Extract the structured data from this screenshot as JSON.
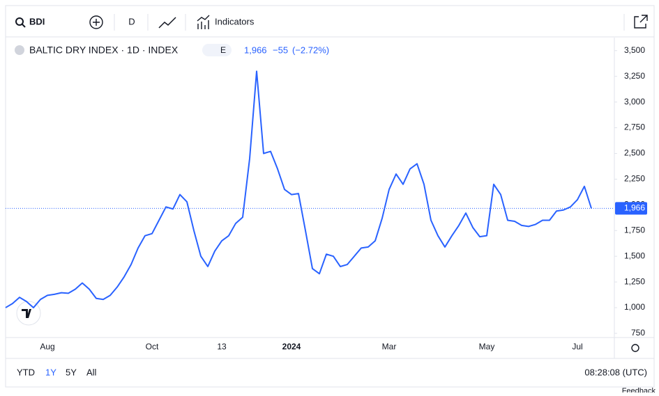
{
  "ui": {
    "symbol": "BDI",
    "interval": "D",
    "indicators": "Indicators",
    "legend_title": "BALTIC DRY INDEX · 1D · INDEX",
    "legend_badge": "E",
    "price": "1,966",
    "change": "−55",
    "change_pct": "(−2.72%)",
    "ranges": [
      "YTD",
      "1Y",
      "5Y",
      "All"
    ],
    "clock": "08:28:08 (UTC)",
    "feedback": "Feedback"
  },
  "chart_data": {
    "type": "line",
    "color": "#2962ff",
    "grid": false,
    "categories": [
      null,
      null,
      null,
      null,
      null,
      null,
      "Aug",
      null,
      null,
      null,
      null,
      null,
      null,
      null,
      null,
      null,
      null,
      null,
      null,
      null,
      null,
      "Oct",
      null,
      null,
      null,
      null,
      null,
      null,
      null,
      null,
      null,
      "13",
      null,
      null,
      null,
      null,
      null,
      null,
      null,
      null,
      null,
      "2024",
      null,
      null,
      null,
      null,
      null,
      null,
      null,
      null,
      null,
      null,
      null,
      null,
      null,
      "Mar",
      null,
      null,
      null,
      null,
      null,
      null,
      null,
      null,
      null,
      null,
      null,
      null,
      null,
      "May",
      null,
      null,
      null,
      null,
      null,
      null,
      null,
      null,
      null,
      null,
      null,
      null,
      "Jul",
      null,
      null
    ],
    "values": [
      1000,
      1040,
      1100,
      1060,
      1000,
      1080,
      1120,
      1130,
      1145,
      1140,
      1180,
      1240,
      1180,
      1090,
      1080,
      1120,
      1200,
      1300,
      1420,
      1580,
      1700,
      1720,
      1850,
      1980,
      1960,
      2100,
      2030,
      1750,
      1500,
      1400,
      1550,
      1650,
      1700,
      1820,
      1880,
      2450,
      3300,
      2500,
      2520,
      2350,
      2150,
      2100,
      2110,
      1750,
      1380,
      1330,
      1520,
      1500,
      1400,
      1420,
      1500,
      1580,
      1590,
      1650,
      1870,
      2150,
      2300,
      2200,
      2350,
      2400,
      2200,
      1850,
      1700,
      1590,
      1700,
      1800,
      1920,
      1780,
      1690,
      1700,
      2200,
      2100,
      1850,
      1840,
      1800,
      1790,
      1810,
      1850,
      1850,
      1940,
      1950,
      1980,
      2050,
      2180,
      1966
    ],
    "last_price": {
      "value": 1966,
      "label": "1,966"
    },
    "ylim": [
      750,
      3600
    ],
    "yticks": [
      {
        "value": 3500,
        "label": "3,500"
      },
      {
        "value": 3250,
        "label": "3,250"
      },
      {
        "value": 3000,
        "label": "3,000"
      },
      {
        "value": 2750,
        "label": "2,750"
      },
      {
        "value": 2500,
        "label": "2,500"
      },
      {
        "value": 2250,
        "label": "2,250"
      },
      {
        "value": 2000,
        "label": "2,000"
      },
      {
        "value": 1750,
        "label": "1,750"
      },
      {
        "value": 1500,
        "label": "1,500"
      },
      {
        "value": 1250,
        "label": "1,250"
      },
      {
        "value": 1000,
        "label": "1,000"
      },
      750
    ]
  }
}
